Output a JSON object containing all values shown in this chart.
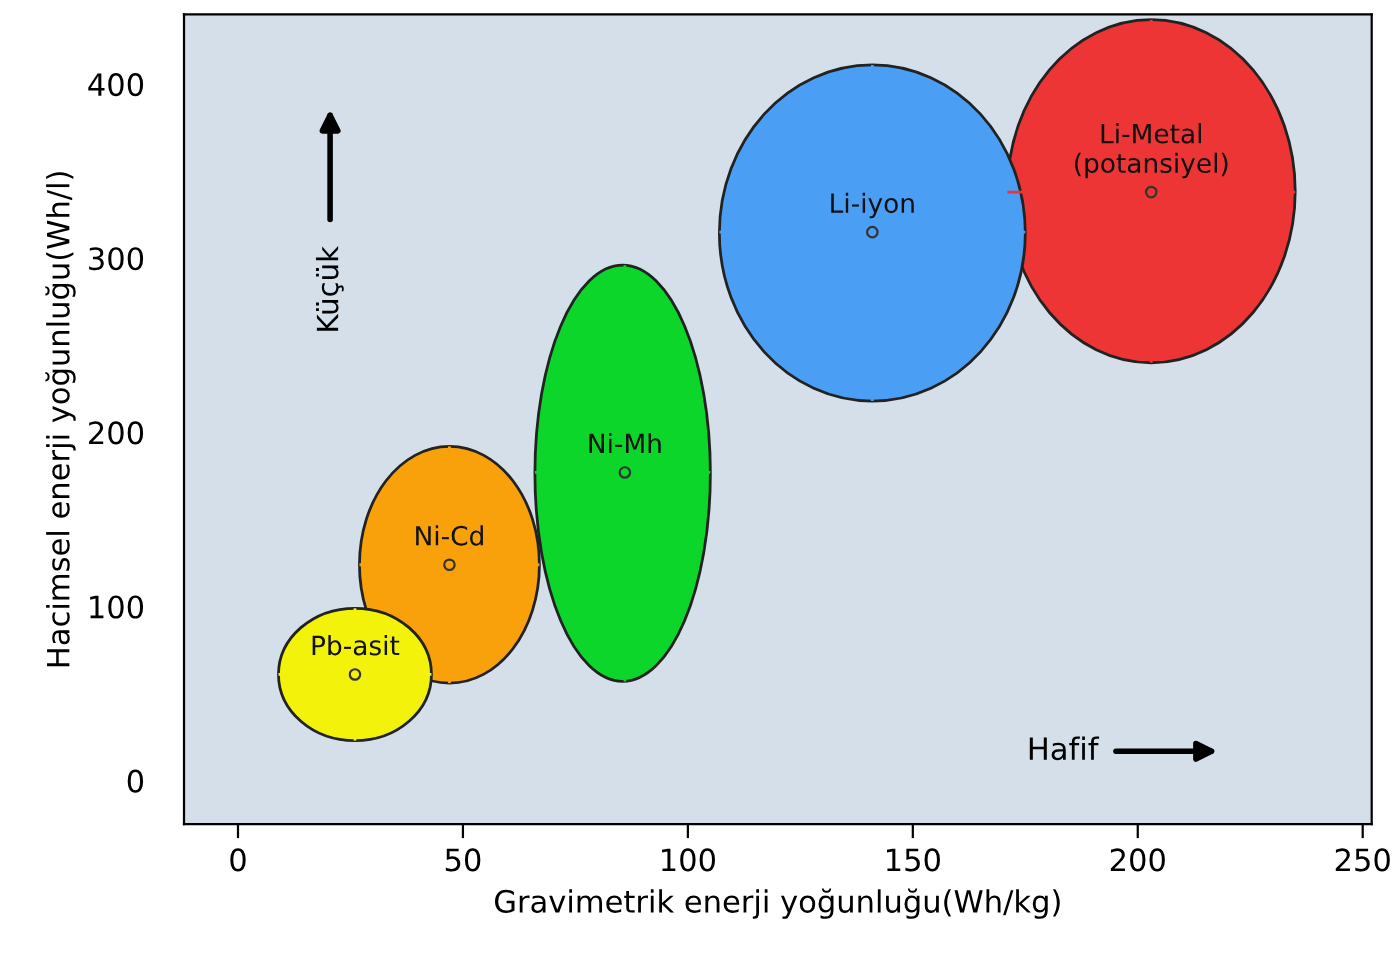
{
  "chart_data": {
    "type": "scatter",
    "xlabel": "Gravimetrik enerji yoğunluğu(Wh/kg)",
    "ylabel": "Hacimsel enerji yoğunluğu(Wh/l)",
    "xlim": [
      -12,
      252
    ],
    "xticks": [
      0,
      50,
      100,
      150,
      200,
      250
    ],
    "ylim": [
      -25,
      440
    ],
    "yticks": [
      0,
      100,
      200,
      300,
      400
    ],
    "grid": false,
    "annotations": [
      "Küçük",
      "Hafif"
    ],
    "series": [
      {
        "name": "Pb-asit",
        "color": "#f2f20a",
        "x": [
          26
        ],
        "values": [
          61
        ],
        "xerrors": [
          [
            9,
            43
          ]
        ],
        "errors": [
          [
            23,
            99
          ]
        ]
      },
      {
        "name": "Ni-Cd",
        "color": "#f9a10a",
        "x": [
          47
        ],
        "values": [
          124
        ],
        "xerrors": [
          [
            27,
            67
          ]
        ],
        "errors": [
          [
            56,
            192
          ]
        ]
      },
      {
        "name": "Ni-Mh",
        "color": "#0cd62a",
        "x": [
          86
        ],
        "values": [
          177
        ],
        "xerrors": [
          [
            66,
            105
          ]
        ],
        "errors": [
          [
            57,
            296
          ]
        ]
      },
      {
        "name": "Li-iyon",
        "color": "#4a9ff5",
        "x": [
          141
        ],
        "values": [
          315
        ],
        "xerrors": [
          [
            107,
            175
          ]
        ],
        "errors": [
          [
            218,
            411
          ]
        ]
      },
      {
        "name": "Li-Metal\n(potansiyel)",
        "color": "#ee3535",
        "x": [
          203
        ],
        "values": [
          338
        ],
        "xerrors": [
          [
            171,
            235
          ]
        ],
        "errors": [
          [
            240,
            437
          ]
        ]
      }
    ]
  }
}
